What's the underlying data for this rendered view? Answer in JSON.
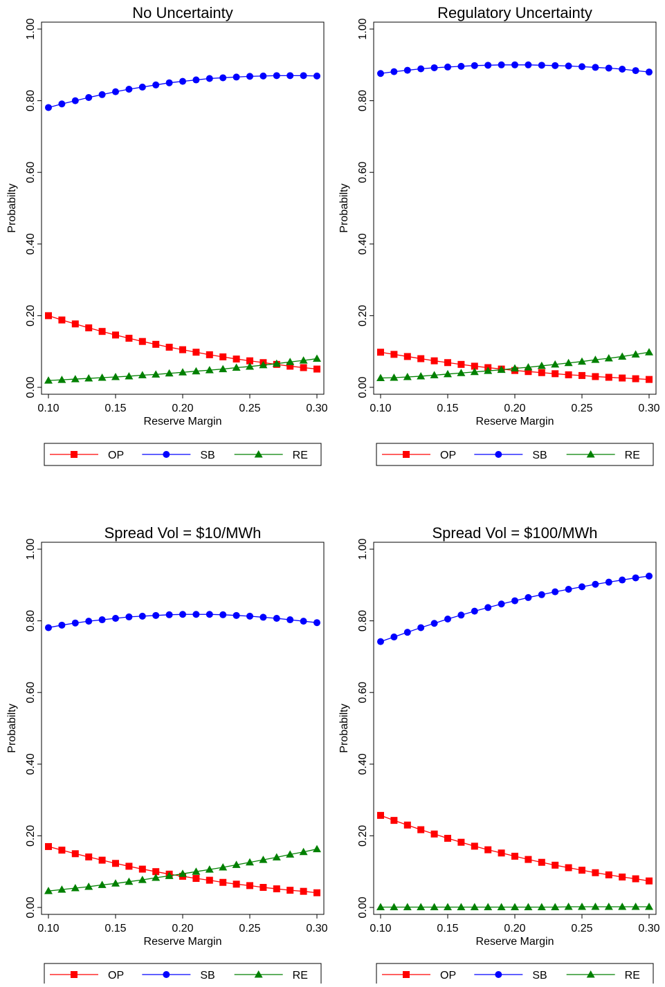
{
  "chart_data": [
    {
      "type": "line",
      "title": "No Uncertainty",
      "xlabel": "Reserve Margin",
      "ylabel": "Probabilty",
      "xlim": [
        0.1,
        0.3
      ],
      "ylim": [
        0.0,
        1.0
      ],
      "x_tick_labels": [
        "0.10",
        "0.15",
        "0.20",
        "0.25",
        "0.30"
      ],
      "y_tick_labels": [
        "0.00",
        "0.20",
        "0.40",
        "0.60",
        "0.80",
        "1.00"
      ],
      "legend_placement": "bottom",
      "x": [
        0.1,
        0.11,
        0.12,
        0.13,
        0.14,
        0.15,
        0.16,
        0.17,
        0.18,
        0.19,
        0.2,
        0.21,
        0.22,
        0.23,
        0.24,
        0.25,
        0.26,
        0.27,
        0.28,
        0.29,
        0.3
      ],
      "series": [
        {
          "name": "OP",
          "color": "#ff0000",
          "marker": "square",
          "values": [
            0.2,
            0.188,
            0.177,
            0.166,
            0.156,
            0.146,
            0.137,
            0.128,
            0.12,
            0.112,
            0.105,
            0.098,
            0.091,
            0.085,
            0.079,
            0.074,
            0.069,
            0.064,
            0.059,
            0.055,
            0.051
          ]
        },
        {
          "name": "SB",
          "color": "#0000ff",
          "marker": "circle",
          "values": [
            0.781,
            0.791,
            0.8,
            0.809,
            0.817,
            0.825,
            0.832,
            0.838,
            0.844,
            0.85,
            0.854,
            0.858,
            0.862,
            0.864,
            0.866,
            0.868,
            0.869,
            0.87,
            0.87,
            0.87,
            0.869
          ]
        },
        {
          "name": "RE",
          "color": "#008000",
          "marker": "triangle",
          "values": [
            0.019,
            0.021,
            0.023,
            0.025,
            0.027,
            0.029,
            0.031,
            0.034,
            0.036,
            0.039,
            0.042,
            0.045,
            0.048,
            0.051,
            0.055,
            0.058,
            0.062,
            0.066,
            0.071,
            0.075,
            0.08
          ]
        }
      ]
    },
    {
      "type": "line",
      "title": "Regulatory Uncertainty",
      "xlabel": "Reserve Margin",
      "ylabel": "Probabilty",
      "xlim": [
        0.1,
        0.3
      ],
      "ylim": [
        0.0,
        1.0
      ],
      "x_tick_labels": [
        "0.10",
        "0.15",
        "0.20",
        "0.25",
        "0.30"
      ],
      "y_tick_labels": [
        "0.00",
        "0.20",
        "0.40",
        "0.60",
        "0.80",
        "1.00"
      ],
      "legend_placement": "bottom",
      "x": [
        0.1,
        0.11,
        0.12,
        0.13,
        0.14,
        0.15,
        0.16,
        0.17,
        0.18,
        0.19,
        0.2,
        0.21,
        0.22,
        0.23,
        0.24,
        0.25,
        0.26,
        0.27,
        0.28,
        0.29,
        0.3
      ],
      "series": [
        {
          "name": "OP",
          "color": "#ff0000",
          "marker": "square",
          "values": [
            0.098,
            0.092,
            0.086,
            0.08,
            0.074,
            0.069,
            0.064,
            0.059,
            0.055,
            0.051,
            0.047,
            0.044,
            0.041,
            0.038,
            0.035,
            0.033,
            0.03,
            0.028,
            0.026,
            0.024,
            0.022
          ]
        },
        {
          "name": "SB",
          "color": "#0000ff",
          "marker": "circle",
          "values": [
            0.876,
            0.881,
            0.885,
            0.889,
            0.892,
            0.894,
            0.896,
            0.898,
            0.899,
            0.9,
            0.9,
            0.9,
            0.899,
            0.898,
            0.897,
            0.895,
            0.893,
            0.891,
            0.888,
            0.884,
            0.88
          ]
        },
        {
          "name": "RE",
          "color": "#008000",
          "marker": "triangle",
          "values": [
            0.026,
            0.027,
            0.029,
            0.031,
            0.034,
            0.037,
            0.04,
            0.043,
            0.046,
            0.049,
            0.053,
            0.056,
            0.06,
            0.064,
            0.068,
            0.072,
            0.077,
            0.081,
            0.086,
            0.092,
            0.098
          ]
        }
      ]
    },
    {
      "type": "line",
      "title": "Spread Vol = $10/MWh",
      "xlabel": "Reserve Margin",
      "ylabel": "Probabilty",
      "xlim": [
        0.1,
        0.3
      ],
      "ylim": [
        0.0,
        1.0
      ],
      "x_tick_labels": [
        "0.10",
        "0.15",
        "0.20",
        "0.25",
        "0.30"
      ],
      "y_tick_labels": [
        "0.00",
        "0.20",
        "0.40",
        "0.60",
        "0.80",
        "1.00"
      ],
      "legend_placement": "bottom",
      "x": [
        0.1,
        0.11,
        0.12,
        0.13,
        0.14,
        0.15,
        0.16,
        0.17,
        0.18,
        0.19,
        0.2,
        0.21,
        0.22,
        0.23,
        0.24,
        0.25,
        0.26,
        0.27,
        0.28,
        0.29,
        0.3
      ],
      "series": [
        {
          "name": "OP",
          "color": "#ff0000",
          "marker": "square",
          "values": [
            0.17,
            0.16,
            0.15,
            0.141,
            0.132,
            0.123,
            0.115,
            0.107,
            0.1,
            0.093,
            0.087,
            0.081,
            0.076,
            0.07,
            0.065,
            0.061,
            0.056,
            0.052,
            0.048,
            0.045,
            0.041
          ]
        },
        {
          "name": "SB",
          "color": "#0000ff",
          "marker": "circle",
          "values": [
            0.781,
            0.788,
            0.794,
            0.799,
            0.803,
            0.807,
            0.811,
            0.813,
            0.815,
            0.817,
            0.818,
            0.818,
            0.818,
            0.817,
            0.815,
            0.813,
            0.81,
            0.807,
            0.803,
            0.799,
            0.795
          ]
        },
        {
          "name": "RE",
          "color": "#008000",
          "marker": "triangle",
          "values": [
            0.046,
            0.05,
            0.054,
            0.058,
            0.063,
            0.067,
            0.072,
            0.077,
            0.083,
            0.088,
            0.094,
            0.1,
            0.106,
            0.112,
            0.119,
            0.126,
            0.133,
            0.14,
            0.148,
            0.155,
            0.163
          ]
        }
      ]
    },
    {
      "type": "line",
      "title": "Spread Vol = $100/MWh",
      "xlabel": "Reserve Margin",
      "ylabel": "Probabilty",
      "xlim": [
        0.1,
        0.3
      ],
      "ylim": [
        0.0,
        1.0
      ],
      "x_tick_labels": [
        "0.10",
        "0.15",
        "0.20",
        "0.25",
        "0.30"
      ],
      "y_tick_labels": [
        "0.00",
        "0.20",
        "0.40",
        "0.60",
        "0.80",
        "1.00"
      ],
      "legend_placement": "bottom",
      "x": [
        0.1,
        0.11,
        0.12,
        0.13,
        0.14,
        0.15,
        0.16,
        0.17,
        0.18,
        0.19,
        0.2,
        0.21,
        0.22,
        0.23,
        0.24,
        0.25,
        0.26,
        0.27,
        0.28,
        0.29,
        0.3
      ],
      "series": [
        {
          "name": "OP",
          "color": "#ff0000",
          "marker": "square",
          "values": [
            0.257,
            0.243,
            0.23,
            0.217,
            0.205,
            0.193,
            0.182,
            0.171,
            0.161,
            0.152,
            0.143,
            0.134,
            0.126,
            0.118,
            0.111,
            0.104,
            0.097,
            0.091,
            0.085,
            0.08,
            0.074
          ]
        },
        {
          "name": "SB",
          "color": "#0000ff",
          "marker": "circle",
          "values": [
            0.742,
            0.755,
            0.768,
            0.781,
            0.793,
            0.805,
            0.816,
            0.827,
            0.837,
            0.847,
            0.856,
            0.865,
            0.873,
            0.881,
            0.888,
            0.895,
            0.902,
            0.908,
            0.914,
            0.92,
            0.925
          ]
        },
        {
          "name": "RE",
          "color": "#008000",
          "marker": "triangle",
          "values": [
            0.001,
            0.001,
            0.001,
            0.001,
            0.001,
            0.001,
            0.001,
            0.001,
            0.001,
            0.001,
            0.001,
            0.001,
            0.001,
            0.001,
            0.002,
            0.002,
            0.002,
            0.002,
            0.002,
            0.002,
            0.002
          ]
        }
      ]
    }
  ]
}
